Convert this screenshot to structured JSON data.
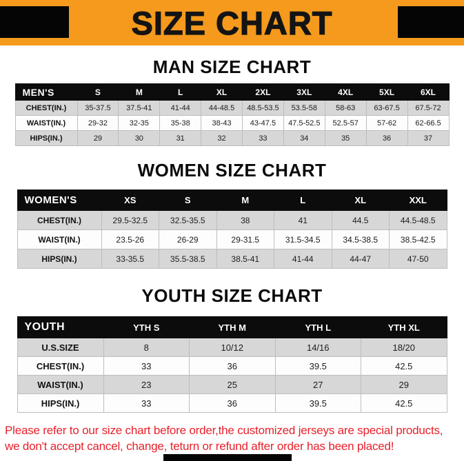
{
  "banner": {
    "title": "SIZE CHART",
    "bg_color": "#F59A1D",
    "corner_box_color": "#050505"
  },
  "chart_data": [
    {
      "id": "man",
      "type": "table",
      "title": "MAN SIZE CHART",
      "columns": [
        "MEN'S",
        "S",
        "M",
        "L",
        "XL",
        "2XL",
        "3XL",
        "4XL",
        "5XL",
        "6XL"
      ],
      "rows": [
        {
          "label": "CHEST(IN.)",
          "values": [
            "35-37.5",
            "37.5-41",
            "41-44",
            "44-48.5",
            "48.5-53.5",
            "53.5-58",
            "58-63",
            "63-67.5",
            "67.5-72"
          ]
        },
        {
          "label": "WAIST(IN.)",
          "values": [
            "29-32",
            "32-35",
            "35-38",
            "38-43",
            "43-47.5",
            "47.5-52.5",
            "52.5-57",
            "57-62",
            "62-66.5"
          ]
        },
        {
          "label": "HIPS(IN.)",
          "values": [
            "29",
            "30",
            "31",
            "32",
            "33",
            "34",
            "35",
            "36",
            "37"
          ]
        }
      ]
    },
    {
      "id": "women",
      "type": "table",
      "title": "WOMEN SIZE CHART",
      "columns": [
        "WOMEN'S",
        "XS",
        "S",
        "M",
        "L",
        "XL",
        "XXL"
      ],
      "rows": [
        {
          "label": "CHEST(IN.)",
          "values": [
            "29.5-32.5",
            "32.5-35.5",
            "38",
            "41",
            "44.5",
            "44.5-48.5"
          ]
        },
        {
          "label": "WAIST(IN.)",
          "values": [
            "23.5-26",
            "26-29",
            "29-31.5",
            "31.5-34.5",
            "34.5-38.5",
            "38.5-42.5"
          ]
        },
        {
          "label": "HIPS(IN.)",
          "values": [
            "33-35.5",
            "35.5-38.5",
            "38.5-41",
            "41-44",
            "44-47",
            "47-50"
          ]
        }
      ]
    },
    {
      "id": "youth",
      "type": "table",
      "title": "YOUTH SIZE CHART",
      "columns": [
        "YOUTH",
        "YTH S",
        "YTH M",
        "YTH L",
        "YTH XL"
      ],
      "rows": [
        {
          "label": "U.S.SIZE",
          "values": [
            "8",
            "10/12",
            "14/16",
            "18/20"
          ]
        },
        {
          "label": "CHEST(IN.)",
          "values": [
            "33",
            "36",
            "39.5",
            "42.5"
          ]
        },
        {
          "label": "WAIST(IN.)",
          "values": [
            "23",
            "25",
            "27",
            "29"
          ]
        },
        {
          "label": "HIPS(IN.)",
          "values": [
            "33",
            "36",
            "39.5",
            "42.5"
          ]
        }
      ]
    }
  ],
  "table_style": {
    "header_bg": "#0C0C0C",
    "header_text": "#FFFFFF",
    "row_alt_bg": "#D7D7D7",
    "row_bg": "#FDFDFD"
  },
  "disclaimer": {
    "line1": "Please refer to our size chart before order,the customized jerseys are special products,",
    "line2": "we don't accept cancel, change, teturn or refund after order has been placed!",
    "color": "#E8202A"
  }
}
